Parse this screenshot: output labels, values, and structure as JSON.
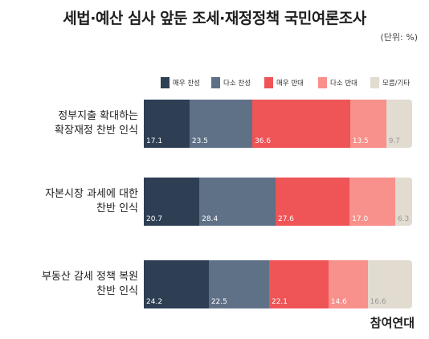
{
  "title": "세법·예산 심사 앞둔 조세·재정정책 국민여론조사",
  "unit": "(단위: %)",
  "logo": "참여연대",
  "colors": {
    "매우 찬성": "#2e3f54",
    "다소 찬성": "#5f7187",
    "매우 반대": "#ef5457",
    "다소 반대": "#f8908b",
    "모름/기타": "#e2dbd0"
  },
  "chart_data": {
    "type": "bar",
    "stacked": true,
    "orientation": "horizontal",
    "xlim": [
      0,
      100
    ],
    "legend_position": "top",
    "categories": [
      [
        "정부지출 확대하는",
        "확장재정 찬반 인식"
      ],
      [
        "자본시장 과세에 대한",
        "찬반 인식"
      ],
      [
        "부동산 감세 정책 복원",
        "찬반 인식"
      ]
    ],
    "series": [
      {
        "name": "매우 찬성",
        "values": [
          17.1,
          20.7,
          24.2
        ]
      },
      {
        "name": "다소 찬성",
        "values": [
          23.5,
          28.4,
          22.5
        ]
      },
      {
        "name": "매우 반대",
        "values": [
          36.6,
          27.6,
          22.1
        ]
      },
      {
        "name": "다소 반대",
        "values": [
          13.5,
          17.0,
          14.6
        ]
      },
      {
        "name": "모름/기타",
        "values": [
          9.7,
          6.3,
          16.6
        ]
      }
    ]
  }
}
